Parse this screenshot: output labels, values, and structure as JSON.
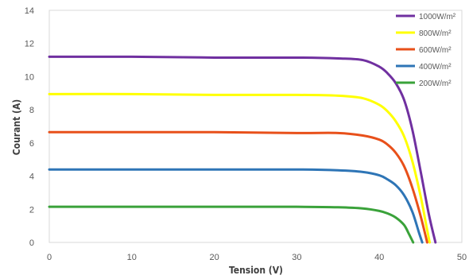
{
  "chart_data": {
    "type": "line",
    "xlabel": "Tension (V)",
    "ylabel": "Courant (A)",
    "xlim": [
      0,
      50
    ],
    "ylim": [
      0,
      14
    ],
    "x_ticks": [
      "0",
      "10",
      "20",
      "30",
      "40",
      "50"
    ],
    "y_ticks": [
      "0",
      "2",
      "4",
      "6",
      "8",
      "10",
      "12",
      "14"
    ],
    "grid": false,
    "legend_position": "top-right",
    "series": [
      {
        "name": "1000W/m²",
        "color": "#7030a0",
        "points": [
          [
            0,
            11.2
          ],
          [
            10,
            11.2
          ],
          [
            20,
            11.15
          ],
          [
            30,
            11.15
          ],
          [
            35,
            11.1
          ],
          [
            38,
            11.0
          ],
          [
            40,
            10.6
          ],
          [
            41,
            10.2
          ],
          [
            42,
            9.6
          ],
          [
            43,
            8.6
          ],
          [
            44,
            6.8
          ],
          [
            45,
            4.3
          ],
          [
            46,
            1.7
          ],
          [
            46.8,
            0
          ]
        ]
      },
      {
        "name": "800W/m²",
        "color": "#ffff00",
        "points": [
          [
            0,
            8.95
          ],
          [
            10,
            8.95
          ],
          [
            20,
            8.9
          ],
          [
            30,
            8.9
          ],
          [
            35,
            8.85
          ],
          [
            38,
            8.7
          ],
          [
            40,
            8.3
          ],
          [
            41,
            7.9
          ],
          [
            42,
            7.3
          ],
          [
            43,
            6.4
          ],
          [
            44,
            4.9
          ],
          [
            45,
            2.8
          ],
          [
            45.7,
            1.0
          ],
          [
            46.1,
            0
          ]
        ]
      },
      {
        "name": "600W/m²",
        "color": "#e8501a",
        "points": [
          [
            0,
            6.65
          ],
          [
            10,
            6.65
          ],
          [
            20,
            6.65
          ],
          [
            30,
            6.6
          ],
          [
            35,
            6.6
          ],
          [
            38,
            6.45
          ],
          [
            40,
            6.2
          ],
          [
            41,
            5.9
          ],
          [
            42,
            5.4
          ],
          [
            43,
            4.6
          ],
          [
            44,
            3.3
          ],
          [
            45,
            1.6
          ],
          [
            45.8,
            0
          ]
        ]
      },
      {
        "name": "400W/m²",
        "color": "#2e75b6",
        "points": [
          [
            0,
            4.4
          ],
          [
            10,
            4.4
          ],
          [
            20,
            4.4
          ],
          [
            30,
            4.4
          ],
          [
            35,
            4.35
          ],
          [
            38,
            4.25
          ],
          [
            40,
            4.05
          ],
          [
            41,
            3.8
          ],
          [
            42,
            3.45
          ],
          [
            43,
            2.85
          ],
          [
            44,
            1.85
          ],
          [
            44.8,
            0.6
          ],
          [
            45.2,
            0
          ]
        ]
      },
      {
        "name": "200W/m²",
        "color": "#3aa23a",
        "points": [
          [
            0,
            2.15
          ],
          [
            10,
            2.15
          ],
          [
            20,
            2.15
          ],
          [
            30,
            2.15
          ],
          [
            35,
            2.12
          ],
          [
            38,
            2.05
          ],
          [
            40,
            1.9
          ],
          [
            41,
            1.75
          ],
          [
            42,
            1.5
          ],
          [
            43,
            1.05
          ],
          [
            43.6,
            0.5
          ],
          [
            44.1,
            0
          ]
        ]
      }
    ]
  }
}
